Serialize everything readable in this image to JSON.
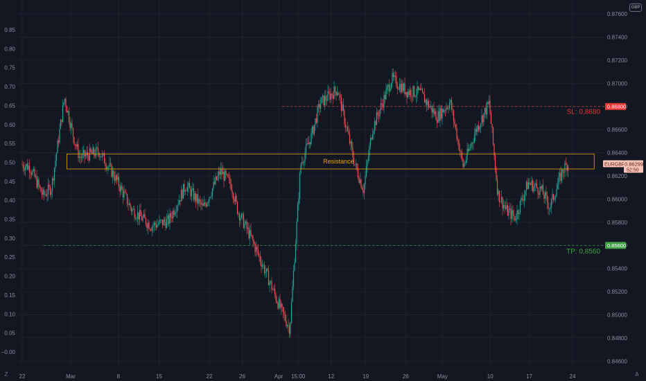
{
  "header": {
    "currency_badge": "GBP"
  },
  "footer": {
    "left_icon_glyph": "Z",
    "right_icon_glyph": "A"
  },
  "colors": {
    "background": "#131722",
    "grid": "#1e222d",
    "up": "#26a69a",
    "down": "#ef5350",
    "resistance": "#f0a30a",
    "sl": "#e53935",
    "tp": "#43a047",
    "tick_text": "#8a8f9c"
  },
  "chart_data": {
    "type": "candlestick",
    "symbol": "EURGBP",
    "left_axis": {
      "ticks": [
        "0.85",
        "0.80",
        "0.75",
        "0.70",
        "0.65",
        "0.60",
        "0.55",
        "0.50",
        "0.45",
        "0.40",
        "0.35",
        "0.30",
        "0.25",
        "0.20",
        "0.15",
        "0.10",
        "0.05",
        "−0.00"
      ],
      "values": [
        0.85,
        0.8,
        0.75,
        0.7,
        0.65,
        0.6,
        0.55,
        0.5,
        0.45,
        0.4,
        0.35,
        0.3,
        0.25,
        0.2,
        0.15,
        0.1,
        0.05,
        0.0
      ]
    },
    "right_axis": {
      "ticks": [
        "0.87600",
        "0.87400",
        "0.87200",
        "0.87000",
        "0.86800",
        "0.86600",
        "0.86400",
        "0.86200",
        "0.86000",
        "0.85800",
        "0.85600",
        "0.85400",
        "0.85200",
        "0.85000",
        "0.84800",
        "0.84600"
      ],
      "values": [
        0.876,
        0.874,
        0.872,
        0.87,
        0.868,
        0.866,
        0.864,
        0.862,
        0.86,
        0.858,
        0.856,
        0.854,
        0.852,
        0.85,
        0.848,
        0.846
      ],
      "range": [
        0.8456,
        0.8772
      ]
    },
    "x_axis": {
      "labels": [
        "22",
        "Mar",
        "8",
        "15",
        "22",
        "26",
        "Apr",
        "15:00",
        "12",
        "19",
        "26",
        "May",
        "10",
        "17",
        "24"
      ],
      "positions": [
        0.0,
        0.112,
        0.222,
        0.316,
        0.432,
        0.508,
        0.592,
        0.637,
        0.713,
        0.793,
        0.885,
        0.97,
        1.08,
        1.17,
        1.27
      ]
    },
    "price_path": [
      [
        0,
        0.863
      ],
      [
        0.02,
        0.8628
      ],
      [
        0.05,
        0.8603
      ],
      [
        0.07,
        0.861
      ],
      [
        0.1,
        0.8688
      ],
      [
        0.12,
        0.8655
      ],
      [
        0.135,
        0.8636
      ],
      [
        0.18,
        0.8641
      ],
      [
        0.215,
        0.862
      ],
      [
        0.255,
        0.8591
      ],
      [
        0.3,
        0.8577
      ],
      [
        0.34,
        0.8581
      ],
      [
        0.38,
        0.8612
      ],
      [
        0.42,
        0.8592
      ],
      [
        0.46,
        0.8624
      ],
      [
        0.485,
        0.8612
      ],
      [
        0.5,
        0.859
      ],
      [
        0.53,
        0.8567
      ],
      [
        0.56,
        0.8541
      ],
      [
        0.6,
        0.8504
      ],
      [
        0.62,
        0.8488
      ],
      [
        0.645,
        0.863
      ],
      [
        0.67,
        0.8655
      ],
      [
        0.69,
        0.8683
      ],
      [
        0.73,
        0.8695
      ],
      [
        0.77,
        0.863
      ],
      [
        0.79,
        0.8608
      ],
      [
        0.81,
        0.866
      ],
      [
        0.855,
        0.8704
      ],
      [
        0.89,
        0.8693
      ],
      [
        0.92,
        0.8692
      ],
      [
        0.96,
        0.8671
      ],
      [
        0.99,
        0.8684
      ],
      [
        1.02,
        0.8628
      ],
      [
        1.05,
        0.866
      ],
      [
        1.08,
        0.8683
      ],
      [
        1.1,
        0.8605
      ],
      [
        1.12,
        0.859
      ],
      [
        1.14,
        0.8584
      ],
      [
        1.17,
        0.8614
      ],
      [
        1.2,
        0.8608
      ],
      [
        1.22,
        0.8593
      ],
      [
        1.25,
        0.8625
      ],
      [
        1.26,
        0.863
      ]
    ],
    "resistance_zone": {
      "label": "Resistance",
      "low": 0.8626,
      "high": 0.8639,
      "x_start": 0.103,
      "x_end": 1.32
    },
    "stop_loss": {
      "label": "SL: 0,8680",
      "price": 0.868,
      "price_tag": "0.86800"
    },
    "take_profit": {
      "label": "TP: 0,8560",
      "price": 0.856,
      "price_tag": "0.85600"
    },
    "current_price_tag": {
      "symbol": "EURGBP",
      "price": 0.86299,
      "price_text": "0.86299",
      "countdown": "52:50"
    }
  }
}
